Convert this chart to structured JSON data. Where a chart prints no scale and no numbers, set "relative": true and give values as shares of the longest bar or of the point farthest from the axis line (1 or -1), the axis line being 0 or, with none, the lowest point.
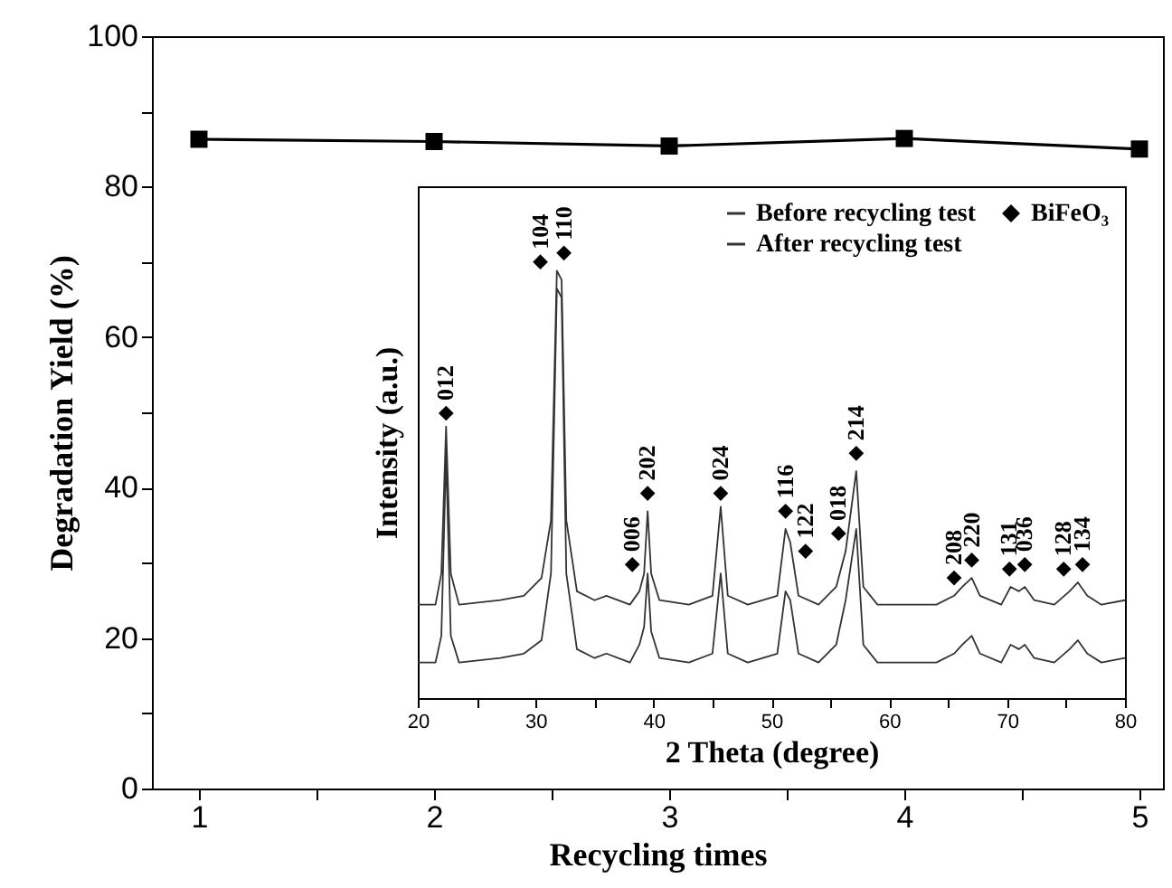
{
  "chart_data": [
    {
      "type": "line",
      "xlabel": "Recycling times",
      "ylabel": "Degradation Yield (%)",
      "x": [
        1,
        2,
        3,
        4,
        5
      ],
      "series": [
        {
          "color": "#000000",
          "values": [
            86.3,
            86.0,
            85.4,
            86.4,
            85.0
          ]
        }
      ],
      "xlim": [
        0.8,
        5.1
      ],
      "xticks": [
        1,
        {
          "value": 1.5,
          "label": null
        },
        2,
        {
          "value": 2.5,
          "label": null
        },
        3,
        {
          "value": 3.5,
          "label": null
        },
        4,
        {
          "value": 4.5,
          "label": null
        },
        5
      ],
      "ylim": [
        0,
        100
      ],
      "yticks": [
        0,
        {
          "value": 10,
          "label": null
        },
        20,
        {
          "value": 30,
          "label": null
        },
        40,
        {
          "value": 50,
          "label": null
        },
        60,
        {
          "value": 70,
          "label": null
        },
        80,
        {
          "value": 90,
          "label": null
        },
        100
      ],
      "marker": "square"
    },
    {
      "type": "line",
      "xlabel": "2 Theta (degree)",
      "ylabel": "Intensity (a.u.)",
      "relative": true,
      "legend": "top right",
      "xlim": [
        20,
        80
      ],
      "xticks": [
        20,
        {
          "value": 25,
          "label": null
        },
        30,
        {
          "value": 35,
          "label": null
        },
        40,
        {
          "value": 45,
          "label": null
        },
        50,
        {
          "value": 55,
          "label": null
        },
        60,
        {
          "value": 65,
          "label": null
        },
        70,
        {
          "value": 75,
          "label": null
        },
        80
      ],
      "series": [
        {
          "name": "Before recycling test",
          "color": "#333333",
          "x": [
            20,
            21.5,
            22.0,
            22.4,
            22.8,
            23.5,
            27,
            29,
            30.5,
            31.3,
            31.8,
            32.2,
            32.6,
            33.5,
            35,
            36,
            38,
            38.8,
            39.2,
            39.5,
            39.8,
            40.5,
            43,
            45,
            45.7,
            46.3,
            48,
            50.5,
            51.2,
            51.6,
            52.3,
            54,
            55.5,
            56.3,
            57.2,
            57.8,
            59,
            64,
            65.5,
            66.2,
            67.0,
            67.7,
            69.5,
            70.3,
            71.0,
            71.5,
            72.3,
            74,
            75.3,
            76,
            76.8,
            78,
            80
          ],
          "values": [
            0.21,
            0.21,
            0.28,
            0.61,
            0.28,
            0.21,
            0.22,
            0.23,
            0.27,
            0.4,
            0.96,
            0.94,
            0.4,
            0.24,
            0.22,
            0.23,
            0.21,
            0.24,
            0.28,
            0.42,
            0.28,
            0.22,
            0.21,
            0.23,
            0.43,
            0.23,
            0.21,
            0.23,
            0.38,
            0.35,
            0.23,
            0.21,
            0.25,
            0.33,
            0.51,
            0.25,
            0.21,
            0.21,
            0.23,
            0.25,
            0.27,
            0.23,
            0.21,
            0.25,
            0.24,
            0.25,
            0.22,
            0.21,
            0.24,
            0.26,
            0.23,
            0.21,
            0.22
          ]
        },
        {
          "name": "After recycling test",
          "color": "#333333",
          "x": [
            20,
            21.5,
            22.0,
            22.4,
            22.8,
            23.5,
            27,
            29,
            30.5,
            31.3,
            31.8,
            32.2,
            32.6,
            33.5,
            35,
            36,
            38,
            38.8,
            39.2,
            39.5,
            39.8,
            40.5,
            43,
            45,
            45.7,
            46.3,
            48,
            50.5,
            51.2,
            51.6,
            52.3,
            54,
            55.5,
            56.3,
            57.2,
            57.8,
            59,
            64,
            65.5,
            66.2,
            67.0,
            67.7,
            69.5,
            70.3,
            71.0,
            71.5,
            72.3,
            74,
            75.3,
            76,
            76.8,
            78,
            80
          ],
          "values": [
            0.08,
            0.08,
            0.14,
            0.55,
            0.14,
            0.08,
            0.09,
            0.1,
            0.13,
            0.28,
            0.92,
            0.9,
            0.28,
            0.11,
            0.09,
            0.1,
            0.08,
            0.12,
            0.16,
            0.28,
            0.15,
            0.09,
            0.08,
            0.1,
            0.28,
            0.1,
            0.08,
            0.1,
            0.24,
            0.22,
            0.1,
            0.08,
            0.12,
            0.22,
            0.38,
            0.12,
            0.08,
            0.08,
            0.1,
            0.12,
            0.14,
            0.1,
            0.08,
            0.12,
            0.11,
            0.12,
            0.09,
            0.08,
            0.11,
            0.13,
            0.1,
            0.08,
            0.09
          ]
        },
        {
          "name": "BiFeO₃",
          "type": "scatter",
          "marker": "diamond",
          "color": "#000000",
          "x": [
            22.4,
            30.4,
            32.4,
            38.2,
            39.5,
            45.7,
            51.2,
            52.9,
            55.7,
            57.2,
            65.5,
            67.0,
            70.2,
            71.5,
            74.8,
            76.4
          ],
          "values": [
            0.64,
            0.98,
            1,
            0.3,
            0.46,
            0.46,
            0.42,
            0.33,
            0.37,
            0.55,
            0.27,
            0.31,
            0.29,
            0.3,
            0.29,
            0.3
          ]
        }
      ],
      "annotations": [
        {
          "text": "012",
          "x": 22.4,
          "y": 0.64
        },
        {
          "text": "104",
          "x": 30.4,
          "y": 0.98
        },
        {
          "text": "110",
          "x": 32.4,
          "y": 1
        },
        {
          "text": "006",
          "x": 38.2,
          "y": 0.3
        },
        {
          "text": "202",
          "x": 39.5,
          "y": 0.46
        },
        {
          "text": "024",
          "x": 45.7,
          "y": 0.46
        },
        {
          "text": "116",
          "x": 51.2,
          "y": 0.42
        },
        {
          "text": "122",
          "x": 52.9,
          "y": 0.33
        },
        {
          "text": "018",
          "x": 55.7,
          "y": 0.37
        },
        {
          "text": "214",
          "x": 57.2,
          "y": 0.55
        },
        {
          "text": "208",
          "x": 65.5,
          "y": 0.27
        },
        {
          "text": "220",
          "x": 67.0,
          "y": 0.31
        },
        {
          "text": "131",
          "x": 70.2,
          "y": 0.29
        },
        {
          "text": "036",
          "x": 71.5,
          "y": 0.3
        },
        {
          "text": "128",
          "x": 74.8,
          "y": 0.29
        },
        {
          "text": "134",
          "x": 76.4,
          "y": 0.3
        }
      ]
    }
  ]
}
